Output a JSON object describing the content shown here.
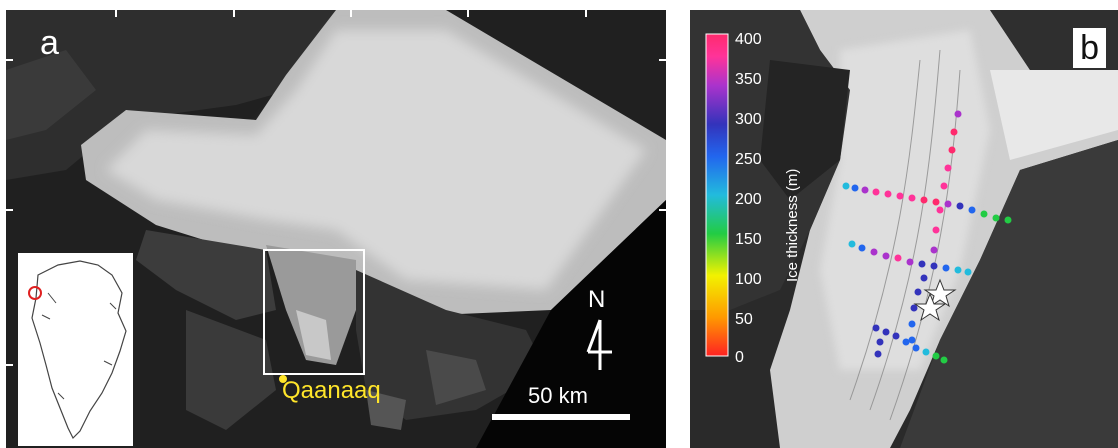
{
  "panel_a": {
    "letter": "a",
    "town_label": "Qaanaaq",
    "north_label": "N",
    "scale_label": "50 km"
  },
  "panel_b": {
    "letter": "b",
    "colorbar": {
      "title": "Ice thickness (m)",
      "ticks": [
        "400",
        "350",
        "300",
        "250",
        "200",
        "150",
        "100",
        "50",
        "0"
      ],
      "range": [
        0,
        400
      ],
      "colors": [
        "#ff2222",
        "#ff9900",
        "#f2f200",
        "#22cc44",
        "#22bbdd",
        "#2266ee",
        "#3333bb",
        "#aa33cc",
        "#ff3399",
        "#ff2a6d"
      ]
    }
  },
  "colors": {
    "town_label": "#ffe52a",
    "highlight_box": "#ffffff",
    "inset_marker": "#e02020"
  }
}
